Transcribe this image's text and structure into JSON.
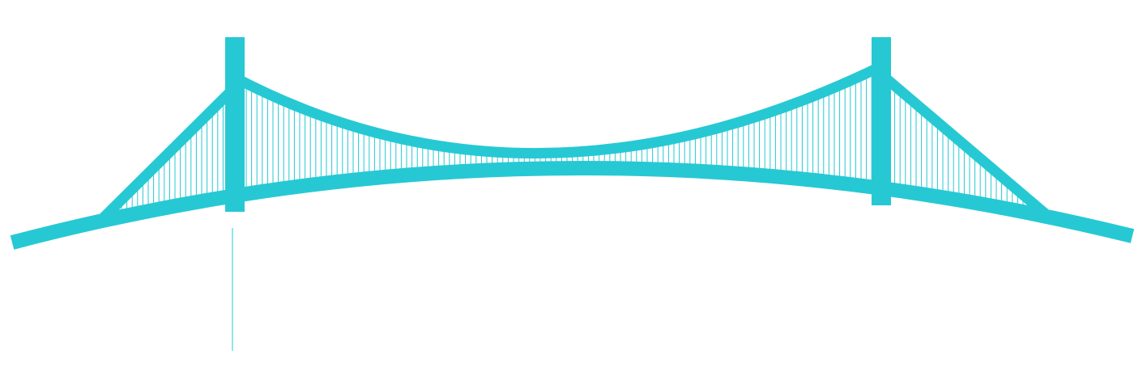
{
  "graphic": {
    "subject": "suspension-bridge",
    "icon": "suspension-bridge-icon",
    "color": "#26c9d3",
    "background": "#ffffff",
    "hanger_count": 150
  }
}
